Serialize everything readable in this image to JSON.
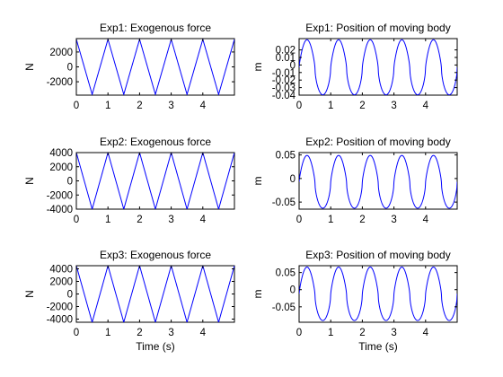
{
  "chart_data": [
    {
      "type": "line",
      "title": "Exp1: Exogenous force",
      "xlabel": "",
      "ylabel": "N",
      "xlim": [
        0,
        5
      ],
      "ylim": [
        -3800,
        3800
      ],
      "xticks": [
        0,
        1,
        2,
        3,
        4
      ],
      "yticks": [
        -2000,
        0,
        2000
      ],
      "ytick_labels": [
        "-2000",
        "0",
        "2000"
      ],
      "series": [
        {
          "kind": "triangle",
          "amplitude": 3700,
          "period": 1,
          "phase": 0,
          "values_at_x": {
            "x": [
              0,
              0.5,
              1,
              1.5,
              2,
              2.5,
              3,
              3.5,
              4,
              4.5,
              5
            ],
            "y": [
              3700,
              -3700,
              3700,
              -3700,
              3700,
              -3700,
              3700,
              -3700,
              3700,
              -3700,
              3700
            ]
          }
        }
      ],
      "color": "#0000ff"
    },
    {
      "type": "line",
      "title": "Exp1: Position of moving body",
      "xlabel": "",
      "ylabel": "m",
      "xlim": [
        0,
        5
      ],
      "ylim": [
        -0.04,
        0.035
      ],
      "xticks": [
        0,
        1,
        2,
        3,
        4
      ],
      "yticks": [
        -0.04,
        -0.03,
        -0.02,
        -0.01,
        0,
        0.01,
        0.02
      ],
      "ytick_labels": [
        "-0.04",
        "-0.03",
        "-0.02",
        "-0.01",
        "0",
        "0.01",
        "0.02"
      ],
      "series": [
        {
          "kind": "position",
          "min": -0.0395,
          "max": 0.0335,
          "start": 0.0,
          "period": 1,
          "peak_at": 0.25,
          "trough_at": 0.75
        }
      ],
      "color": "#0000ff"
    },
    {
      "type": "line",
      "title": "Exp2: Exogenous force",
      "xlabel": "",
      "ylabel": "N",
      "xlim": [
        0,
        5
      ],
      "ylim": [
        -4000,
        4000
      ],
      "xticks": [
        0,
        1,
        2,
        3,
        4
      ],
      "yticks": [
        -4000,
        -2000,
        0,
        2000,
        4000
      ],
      "ytick_labels": [
        "-4000",
        "-2000",
        "0",
        "2000",
        "4000"
      ],
      "series": [
        {
          "kind": "triangle",
          "amplitude": 4000,
          "period": 1,
          "phase": 0,
          "values_at_x": {
            "x": [
              0,
              0.5,
              1,
              1.5,
              2,
              2.5,
              3,
              3.5,
              4,
              4.5,
              5
            ],
            "y": [
              4000,
              -4000,
              4000,
              -4000,
              4000,
              -4000,
              4000,
              -4000,
              4000,
              -4000,
              4000
            ]
          }
        }
      ],
      "color": "#0000ff"
    },
    {
      "type": "line",
      "title": "Exp2: Position of moving body",
      "xlabel": "",
      "ylabel": "m",
      "xlim": [
        0,
        5
      ],
      "ylim": [
        -0.065,
        0.055
      ],
      "xticks": [
        0,
        1,
        2,
        3,
        4
      ],
      "yticks": [
        -0.05,
        0,
        0.05
      ],
      "ytick_labels": [
        "-0.05",
        "0",
        "0.05"
      ],
      "series": [
        {
          "kind": "position",
          "min": -0.063,
          "max": 0.049,
          "start": 0.0,
          "period": 1,
          "peak_at": 0.25,
          "trough_at": 0.75
        }
      ],
      "color": "#0000ff"
    },
    {
      "type": "line",
      "title": "Exp3: Exogenous force",
      "xlabel": "Time (s)",
      "ylabel": "N",
      "xlim": [
        0,
        5
      ],
      "ylim": [
        -4500,
        4500
      ],
      "xticks": [
        0,
        1,
        2,
        3,
        4
      ],
      "yticks": [
        -4000,
        -2000,
        0,
        2000,
        4000
      ],
      "ytick_labels": [
        "-4000",
        "-2000",
        "0",
        "2000",
        "4000"
      ],
      "series": [
        {
          "kind": "triangle",
          "amplitude": 4500,
          "period": 1,
          "phase": 0,
          "values_at_x": {
            "x": [
              0,
              0.5,
              1,
              1.5,
              2,
              2.5,
              3,
              3.5,
              4,
              4.5,
              5
            ],
            "y": [
              4500,
              -4500,
              4500,
              -4500,
              4500,
              -4500,
              4500,
              -4500,
              4500,
              -4500,
              4500
            ]
          }
        }
      ],
      "color": "#0000ff"
    },
    {
      "type": "line",
      "title": "Exp3: Position of moving body",
      "xlabel": "Time (s)",
      "ylabel": "m",
      "xlim": [
        0,
        5
      ],
      "ylim": [
        -0.095,
        0.07
      ],
      "xticks": [
        0,
        1,
        2,
        3,
        4
      ],
      "yticks": [
        -0.05,
        0,
        0.05
      ],
      "ytick_labels": [
        "-0.05",
        "0",
        "0.05"
      ],
      "series": [
        {
          "kind": "position",
          "min": -0.09,
          "max": 0.066,
          "start": 0.0,
          "period": 1,
          "peak_at": 0.25,
          "trough_at": 0.75
        }
      ],
      "color": "#0000ff"
    }
  ]
}
